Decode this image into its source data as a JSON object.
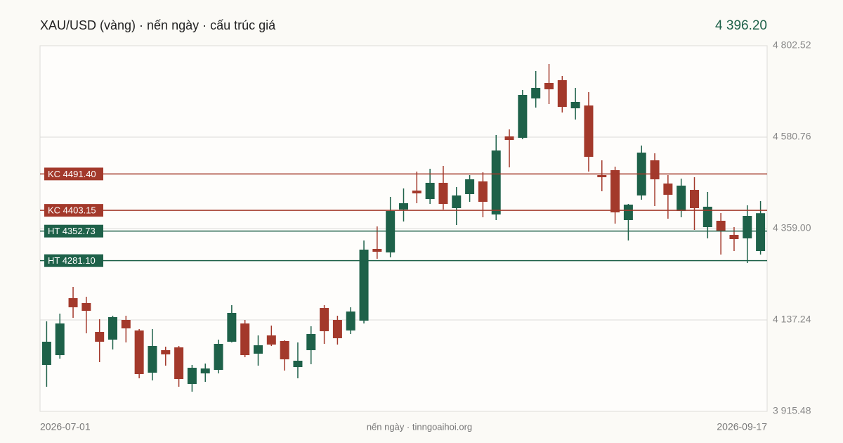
{
  "chart_data": {
    "type": "candlestick",
    "title": "XAU/USD (vàng) · nến ngày · cấu trúc giá",
    "last_price": {
      "value": 4396.2,
      "label": "4 396.20"
    },
    "footer": "nến ngày · tinngoaihoi.org",
    "categories": [
      "2026-07-01",
      null,
      null,
      null,
      null,
      null,
      null,
      null,
      null,
      null,
      null,
      null,
      null,
      null,
      null,
      null,
      null,
      null,
      null,
      null,
      null,
      null,
      null,
      null,
      null,
      null,
      null,
      null,
      null,
      null,
      null,
      null,
      null,
      null,
      null,
      null,
      null,
      null,
      null,
      null,
      null,
      null,
      null,
      null,
      null,
      null,
      null,
      null,
      null,
      null,
      null,
      null,
      null,
      null,
      "2026-09-17"
    ],
    "series": {
      "open": [
        4028.1,
        4051.9,
        4190.1,
        4178.2,
        4108.2,
        4089.5,
        4137.2,
        4111.7,
        4009.3,
        4063.9,
        4070.7,
        3982.0,
        4007.6,
        4016.1,
        4084.4,
        4128.7,
        4055.4,
        4099.7,
        4086.1,
        4022.9,
        4063.9,
        4166.2,
        4137.2,
        4111.7,
        4135.5,
        4309.5,
        4301.0,
        4405.1,
        4451.1,
        4430.6,
        4469.9,
        4408.5,
        4442.6,
        4473.3,
        4393.1,
        4582.5,
        4579.1,
        4674.6,
        4712.1,
        4718.9,
        4650.7,
        4657.5,
        4488.6,
        4500.6,
        4379.5,
        4439.2,
        4524.5,
        4468.2,
        4401.6,
        4452.8,
        4362.4,
        4377.8,
        4343.6,
        4335.1,
        4304.4
      ],
      "high": [
        4133.8,
        4152.6,
        4217.4,
        4193.5,
        4138.9,
        4147.5,
        4147.5,
        4115.1,
        4115.1,
        4072.4,
        4074.1,
        4028.1,
        4031.5,
        4089.5,
        4173.1,
        4137.2,
        4099.7,
        4123.6,
        4087.8,
        4082.7,
        4121.9,
        4173.1,
        4147.5,
        4168.0,
        4330.0,
        4364.1,
        4435.8,
        4456.2,
        4497.2,
        4504.0,
        4510.8,
        4459.6,
        4488.6,
        4495.5,
        4585.9,
        4599.5,
        4695.1,
        4741.1,
        4758.2,
        4729.2,
        4700.2,
        4689.9,
        4524.5,
        4509.1,
        4418.7,
        4560.3,
        4541.5,
        4488.6,
        4480.1,
        4483.5,
        4447.7,
        4396.5,
        4362.4,
        4415.3,
        4425.5
      ],
      "low": [
        3975.2,
        4043.4,
        4142.4,
        4104.8,
        4034.9,
        4065.6,
        4082.7,
        3995.7,
        3990.5,
        4026.4,
        3975.2,
        3963.2,
        3987.1,
        4007.6,
        4082.7,
        4046.8,
        4026.4,
        4074.1,
        4014.4,
        3995.7,
        4029.8,
        4079.2,
        4077.5,
        4103.1,
        4128.7,
        4285.6,
        4289.1,
        4376.1,
        4420.4,
        4418.7,
        4405.1,
        4367.5,
        4423.8,
        4386.3,
        4379.5,
        4507.4,
        4575.6,
        4652.4,
        4660.9,
        4640.5,
        4623.4,
        4497.2,
        4449.4,
        4370.9,
        4330.0,
        4428.9,
        4413.6,
        4382.9,
        4386.3,
        4355.6,
        4335.1,
        4295.9,
        4304.4,
        4275.4,
        4295.9
      ],
      "close": [
        4084.4,
        4128.7,
        4168.0,
        4159.4,
        4084.4,
        4144.1,
        4116.8,
        4005.9,
        4074.1,
        4053.7,
        3993.9,
        4021.2,
        4019.5,
        4079.2,
        4154.3,
        4051.9,
        4075.8,
        4077.5,
        4041.7,
        4038.3,
        4103.1,
        4109.9,
        4092.9,
        4157.7,
        4307.8,
        4302.7,
        4401.6,
        4420.4,
        4444.3,
        4469.9,
        4418.7,
        4439.2,
        4478.4,
        4423.8,
        4548.3,
        4573.9,
        4683.1,
        4700.2,
        4696.8,
        4654.1,
        4666.1,
        4533.0,
        4483.5,
        4398.2,
        4417.0,
        4543.2,
        4478.4,
        4440.9,
        4463.1,
        4408.5,
        4411.9,
        4353.9,
        4333.4,
        4389.7,
        4396.2
      ]
    },
    "up_color": "#1e6149",
    "down_color": "#a3392b",
    "levels": [
      {
        "label": "KC 4491.40",
        "value": 4491.4,
        "color": "#a3392b"
      },
      {
        "label": "KC 4403.15",
        "value": 4403.15,
        "color": "#a3392b"
      },
      {
        "label": "HT 4352.73",
        "value": 4352.73,
        "color": "#1e6149"
      },
      {
        "label": "HT 4281.10",
        "value": 4281.1,
        "color": "#1e6149"
      }
    ],
    "ylim": [
      3915.48,
      4802.52
    ],
    "yticks": [
      {
        "value": 3915.48,
        "label": "3 915.48"
      },
      {
        "value": 4137.24,
        "label": "4 137.24"
      },
      {
        "value": 4359.0,
        "label": "4 359.00"
      },
      {
        "value": 4580.76,
        "label": "4 580.76"
      },
      {
        "value": 4802.52,
        "label": "4 802.52"
      }
    ],
    "grid": true
  }
}
